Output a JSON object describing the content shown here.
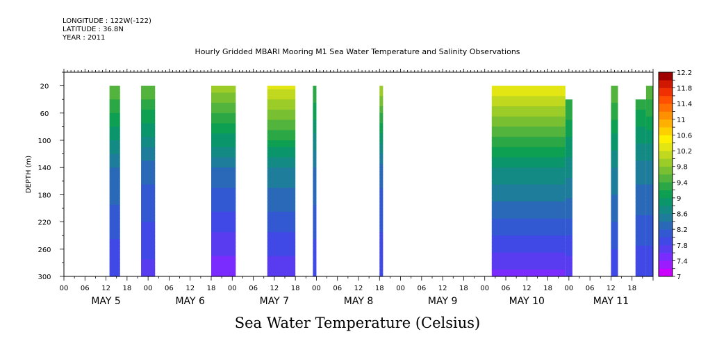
{
  "header": {
    "longitude": "LONGITUDE : 122W(-122)",
    "latitude": "LATITUDE : 36.8N",
    "year": "YEAR : 2011"
  },
  "chart_data": {
    "type": "heatmap",
    "title": "Hourly Gridded MBARI Mooring M1 Sea Water Temperature and Salinity Observations",
    "colorbar_label": "Sea Water Temperature (Celsius)",
    "ylabel": "DEPTH (m)",
    "y_axis": {
      "range": [
        300,
        0
      ],
      "ticks": [
        20,
        60,
        100,
        140,
        180,
        220,
        260,
        300
      ],
      "reversed": true
    },
    "x_axis": {
      "range_hours": [
        0,
        168
      ],
      "hour_ticks": [
        "00",
        "06",
        "12",
        "18",
        "00",
        "06",
        "12",
        "18",
        "00",
        "06",
        "12",
        "18",
        "00",
        "06",
        "12",
        "18",
        "00",
        "06",
        "12",
        "18",
        "00",
        "06",
        "12",
        "18",
        "00",
        "06",
        "12",
        "18"
      ],
      "day_labels": [
        "MAY  5",
        "MAY  6",
        "MAY  7",
        "MAY  8",
        "MAY  9",
        "MAY 10",
        "MAY 11"
      ]
    },
    "colorbar": {
      "levels": [
        7,
        7.2,
        7.4,
        7.6,
        7.8,
        8,
        8.2,
        8.4,
        8.6,
        8.8,
        9,
        9.2,
        9.4,
        9.6,
        9.8,
        10,
        10.2,
        10.4,
        10.6,
        10.8,
        11,
        11.2,
        11.4,
        11.6,
        11.8,
        12,
        12.2
      ],
      "labels": [
        "12.2",
        "11.8",
        "11.4",
        "11",
        "10.6",
        "10.2",
        "9.8",
        "9.4",
        "9",
        "8.6",
        "8.2",
        "7.8",
        "7.4",
        "7"
      ],
      "colors": [
        "#cc00ff",
        "#9a1cff",
        "#7a2cff",
        "#5a3cf0",
        "#4048e6",
        "#3258d2",
        "#2a69b8",
        "#1f7d9c",
        "#138a84",
        "#0b956b",
        "#0ea052",
        "#2ba845",
        "#52b43c",
        "#78c032",
        "#9ccc28",
        "#c0d81e",
        "#e4e614",
        "#fff000",
        "#ffd000",
        "#ffb000",
        "#ff9000",
        "#ff7000",
        "#ff5000",
        "#f03000",
        "#d01800",
        "#a00000"
      ]
    },
    "data_segments": [
      {
        "start_hr": 13,
        "end_hr": 16,
        "top_depth": 20,
        "surface_temp": 9.6,
        "mid_temp": 8.4,
        "bottom_temp": 7.8
      },
      {
        "start_hr": 22,
        "end_hr": 26,
        "top_depth": 20,
        "surface_temp": 9.6,
        "mid_temp": 8.3,
        "bottom_temp": 7.7
      },
      {
        "start_hr": 42,
        "end_hr": 49,
        "top_depth": 20,
        "surface_temp": 9.9,
        "mid_temp": 8.4,
        "bottom_temp": 7.4
      },
      {
        "start_hr": 58,
        "end_hr": 66,
        "top_depth": 20,
        "surface_temp": 10.3,
        "mid_temp": 8.6,
        "bottom_temp": 7.6
      },
      {
        "start_hr": 71,
        "end_hr": 72,
        "top_depth": 20,
        "surface_temp": 9.4,
        "mid_temp": 8.4,
        "bottom_temp": 7.8
      },
      {
        "start_hr": 90,
        "end_hr": 91,
        "top_depth": 20,
        "surface_temp": 10.0,
        "mid_temp": 8.3,
        "bottom_temp": 7.8
      },
      {
        "start_hr": 122,
        "end_hr": 143,
        "top_depth": 20,
        "surface_temp": 10.4,
        "mid_temp": 8.8,
        "bottom_temp": 7.5
      },
      {
        "start_hr": 143,
        "end_hr": 145,
        "top_depth": 40,
        "surface_temp": 9.4,
        "mid_temp": 8.7,
        "bottom_temp": 7.6
      },
      {
        "start_hr": 156,
        "end_hr": 158,
        "top_depth": 20,
        "surface_temp": 9.6,
        "mid_temp": 8.6,
        "bottom_temp": 7.8
      },
      {
        "start_hr": 163,
        "end_hr": 166,
        "top_depth": 40,
        "surface_temp": 9.3,
        "mid_temp": 8.5,
        "bottom_temp": 7.8
      },
      {
        "start_hr": 166,
        "end_hr": 168,
        "top_depth": 20,
        "surface_temp": 9.6,
        "mid_temp": 8.5,
        "bottom_temp": 7.8
      }
    ]
  }
}
